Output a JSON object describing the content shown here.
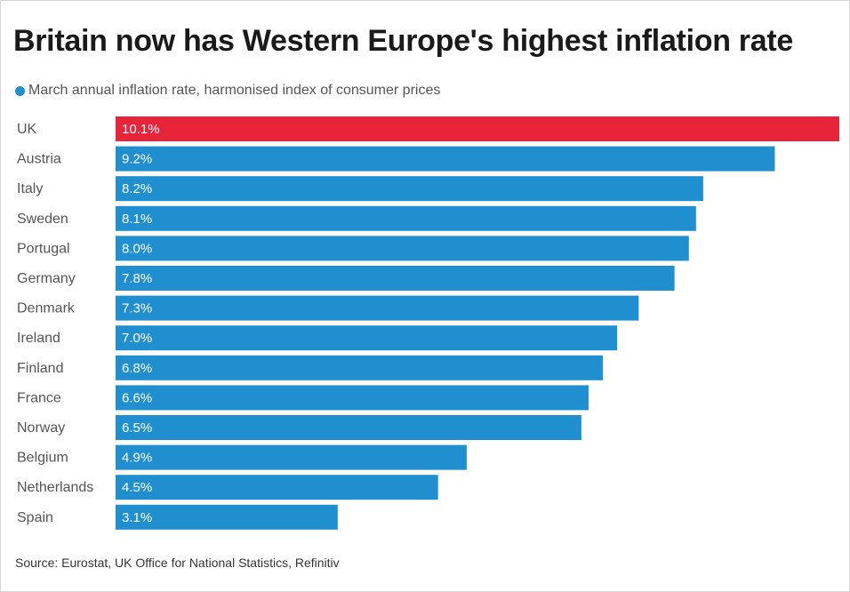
{
  "title": "Britain now has Western Europe's highest inflation rate",
  "legend": {
    "label": "March annual inflation rate, harmonised index of consumer prices",
    "color": "#1f8fcf"
  },
  "source": "Source: Eurostat, UK Office for National Statistics, Refinitiv",
  "colors": {
    "bar": "#1f8fcf",
    "highlight": "#e8243b"
  },
  "chart_data": {
    "type": "bar",
    "orientation": "horizontal",
    "title": "Britain now has Western Europe's highest inflation rate",
    "xlabel": "",
    "ylabel": "",
    "xlim": [
      0,
      10.1
    ],
    "grid": false,
    "highlight_category": "UK",
    "categories": [
      "UK",
      "Austria",
      "Italy",
      "Sweden",
      "Portugal",
      "Germany",
      "Denmark",
      "Ireland",
      "Finland",
      "France",
      "Norway",
      "Belgium",
      "Netherlands",
      "Spain"
    ],
    "values": [
      10.1,
      9.2,
      8.2,
      8.1,
      8.0,
      7.8,
      7.3,
      7.0,
      6.8,
      6.6,
      6.5,
      4.9,
      4.5,
      3.1
    ],
    "value_labels": [
      "10.1%",
      "9.2%",
      "8.2%",
      "8.1%",
      "8.0%",
      "7.8%",
      "7.3%",
      "7.0%",
      "6.8%",
      "6.6%",
      "6.5%",
      "4.9%",
      "4.5%",
      "3.1%"
    ],
    "series": [
      {
        "name": "March annual inflation rate, harmonised index of consumer prices",
        "values": [
          10.1,
          9.2,
          8.2,
          8.1,
          8.0,
          7.8,
          7.3,
          7.0,
          6.8,
          6.6,
          6.5,
          4.9,
          4.5,
          3.1
        ]
      }
    ]
  }
}
